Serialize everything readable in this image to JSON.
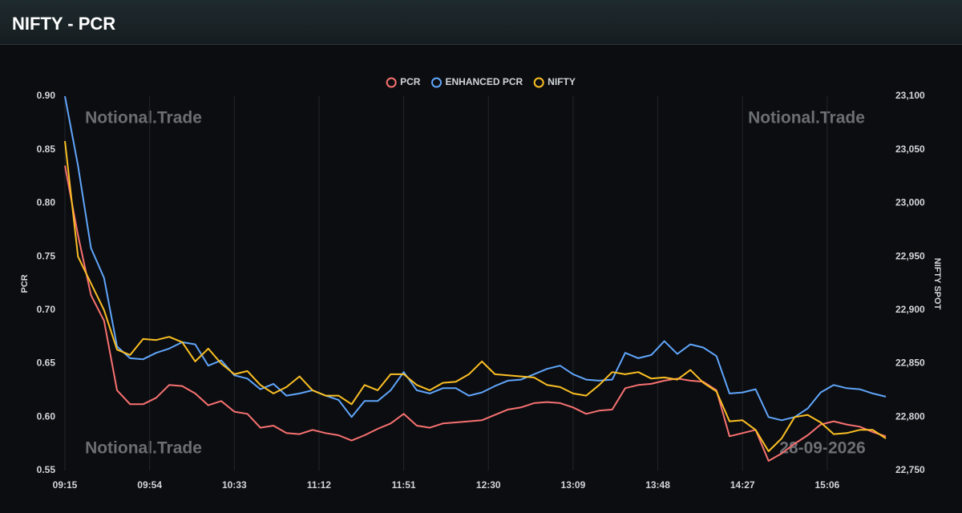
{
  "header": {
    "title": "NIFTY - PCR"
  },
  "chart_data": {
    "type": "line",
    "x": [
      555,
      561,
      567,
      573,
      579,
      585,
      591,
      597,
      603,
      609,
      615,
      621,
      627,
      633,
      639,
      645,
      651,
      657,
      663,
      669,
      675,
      681,
      687,
      693,
      699,
      705,
      711,
      717,
      723,
      729,
      735,
      741,
      747,
      753,
      759,
      765,
      771,
      777,
      783,
      789,
      795,
      801,
      807,
      813,
      819,
      825,
      831,
      837,
      843,
      849,
      855,
      861,
      867,
      873,
      879,
      885,
      891,
      897,
      903,
      909,
      915,
      921,
      927,
      933
    ],
    "series": [
      {
        "name": "PCR",
        "color": "#f87171",
        "values": [
          0.835,
          0.77,
          0.714,
          0.69,
          0.625,
          0.612,
          0.612,
          0.618,
          0.63,
          0.629,
          0.622,
          0.611,
          0.615,
          0.605,
          0.603,
          0.59,
          0.592,
          0.585,
          0.584,
          0.588,
          0.585,
          0.583,
          0.578,
          0.583,
          0.589,
          0.594,
          0.603,
          0.592,
          0.59,
          0.594,
          0.595,
          0.596,
          0.597,
          0.602,
          0.607,
          0.609,
          0.613,
          0.614,
          0.613,
          0.609,
          0.603,
          0.606,
          0.607,
          0.627,
          0.63,
          0.631,
          0.634,
          0.636,
          0.634,
          0.633,
          0.625,
          0.582,
          0.585,
          0.588,
          0.559,
          0.566,
          0.575,
          0.583,
          0.593,
          0.596,
          0.593,
          0.591,
          0.586,
          0.582
        ]
      },
      {
        "name": "ENHANCED PCR",
        "color": "#60a5fa",
        "values": [
          0.9,
          0.835,
          0.758,
          0.73,
          0.666,
          0.655,
          0.654,
          0.66,
          0.664,
          0.67,
          0.668,
          0.648,
          0.653,
          0.639,
          0.636,
          0.626,
          0.631,
          0.62,
          0.622,
          0.625,
          0.62,
          0.616,
          0.6,
          0.615,
          0.615,
          0.625,
          0.642,
          0.625,
          0.622,
          0.627,
          0.627,
          0.62,
          0.623,
          0.629,
          0.634,
          0.635,
          0.64,
          0.645,
          0.648,
          0.64,
          0.635,
          0.634,
          0.635,
          0.66,
          0.655,
          0.658,
          0.671,
          0.659,
          0.668,
          0.665,
          0.657,
          0.622,
          0.623,
          0.626,
          0.6,
          0.597,
          0.6,
          0.608,
          0.623,
          0.63,
          0.627,
          0.626,
          0.622,
          0.619
        ]
      },
      {
        "name": "NIFTY",
        "color": "#fbbf24",
        "axis": "y2",
        "values": [
          23058,
          22950,
          22925,
          22900,
          22863,
          22858,
          22873,
          22872,
          22875,
          22870,
          22852,
          22864,
          22850,
          22840,
          22843,
          22830,
          22822,
          22828,
          22838,
          22825,
          22820,
          22820,
          22812,
          22830,
          22825,
          22840,
          22840,
          22830,
          22825,
          22832,
          22833,
          22840,
          22852,
          22840,
          22839,
          22838,
          22837,
          22830,
          22828,
          22822,
          22820,
          22830,
          22842,
          22840,
          22842,
          22836,
          22837,
          22835,
          22844,
          22832,
          22824,
          22796,
          22797,
          22788,
          22768,
          22780,
          22800,
          22802,
          22795,
          22784,
          22785,
          22788,
          22788,
          22780
        ]
      }
    ],
    "xlim": [
      555,
      933
    ],
    "xticks": [
      {
        "value": 555,
        "label": "09:15"
      },
      {
        "value": 594,
        "label": "09:54"
      },
      {
        "value": 633,
        "label": "10:33"
      },
      {
        "value": 672,
        "label": "11:12"
      },
      {
        "value": 711,
        "label": "11:51"
      },
      {
        "value": 750,
        "label": "12:30"
      },
      {
        "value": 789,
        "label": "13:09"
      },
      {
        "value": 828,
        "label": "13:48"
      },
      {
        "value": 867,
        "label": "14:27"
      },
      {
        "value": 906,
        "label": "15:06"
      }
    ],
    "ylim": [
      0.55,
      0.9
    ],
    "yticks": [
      0.55,
      {
        "value": 0.6,
        "label": "0.60"
      },
      0.65,
      {
        "value": 0.7,
        "label": "0.70"
      },
      0.75,
      {
        "value": 0.8,
        "label": "0.80"
      },
      0.85,
      {
        "value": 0.9,
        "label": "0.90"
      }
    ],
    "y2lim": [
      22750,
      23100
    ],
    "y2ticks": [
      {
        "value": 22750,
        "label": "22,750"
      },
      {
        "value": 22800,
        "label": "22,800"
      },
      {
        "value": 22850,
        "label": "22,850"
      },
      {
        "value": 22900,
        "label": "22,900"
      },
      {
        "value": 22950,
        "label": "22,950"
      },
      {
        "value": 23000,
        "label": "23,000"
      },
      {
        "value": 23050,
        "label": "23,050"
      },
      {
        "value": 23100,
        "label": "23,100"
      }
    ],
    "ylabel": "PCR",
    "y2label": "NIFTY SPOT",
    "grid": true,
    "legend": "top",
    "annotations": [
      "Notional.Trade",
      "Notional.Trade",
      "Notional.Trade",
      "28-09-2026"
    ]
  }
}
